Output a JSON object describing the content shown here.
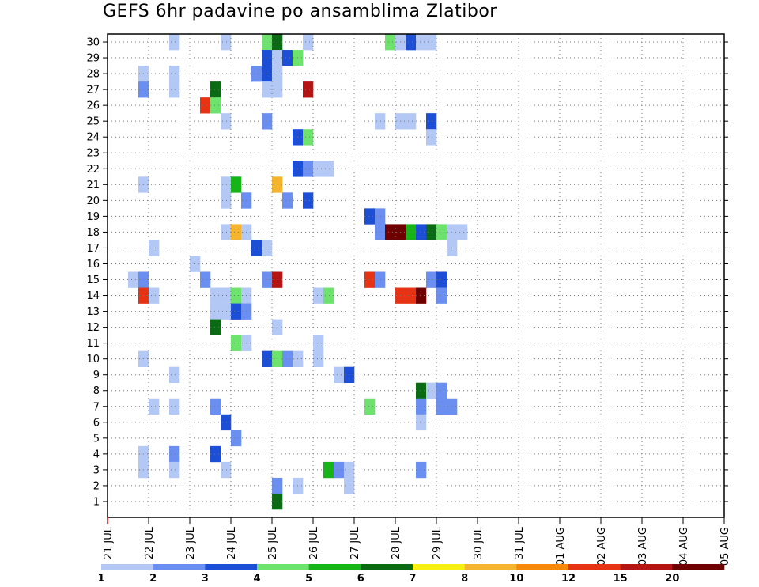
{
  "title": "GEFS 6hr padavine po ansamblima Zlatibor",
  "chart_data": {
    "type": "heatmap",
    "title": "GEFS 6hr padavine po ansamblima Zlatibor",
    "x_labels": [
      "21 JUL",
      "22 JUL",
      "23 JUL",
      "24 JUL",
      "25 JUL",
      "26 JUL",
      "27 JUL",
      "28 JUL",
      "29 JUL",
      "30 JUL",
      "31 JUL",
      "01 AUG",
      "02 AUG",
      "03 AUG",
      "04 AUG",
      "05 AUG"
    ],
    "y_labels": [
      "1",
      "2",
      "3",
      "4",
      "5",
      "6",
      "7",
      "8",
      "9",
      "10",
      "11",
      "12",
      "13",
      "14",
      "15",
      "16",
      "17",
      "18",
      "19",
      "20",
      "21",
      "22",
      "23",
      "24",
      "25",
      "26",
      "27",
      "28",
      "29",
      "30"
    ],
    "y_range": [
      0,
      30
    ],
    "x_step_hours": 6,
    "grid": true,
    "legend_position": "bottom",
    "legend": {
      "labels": [
        "1",
        "2",
        "3",
        "4",
        "5",
        "6",
        "7",
        "8",
        "10",
        "12",
        "15",
        "20"
      ],
      "colors": [
        "#b4c8f5",
        "#6b8ff0",
        "#1c4fd6",
        "#6de36d",
        "#17b417",
        "#0a6b14",
        "#f5f010",
        "#f5b42d",
        "#f58a0a",
        "#e63314",
        "#b41414",
        "#6e0000"
      ]
    },
    "cells": [
      [
        6,
        30,
        1
      ],
      [
        11,
        30,
        1
      ],
      [
        15,
        30,
        4
      ],
      [
        16,
        30,
        6
      ],
      [
        19,
        30,
        1
      ],
      [
        27,
        30,
        4
      ],
      [
        28,
        30,
        1
      ],
      [
        29,
        30,
        3
      ],
      [
        30,
        30,
        1
      ],
      [
        31,
        30,
        1
      ],
      [
        15,
        29,
        3
      ],
      [
        16,
        29,
        1
      ],
      [
        17,
        29,
        3
      ],
      [
        18,
        29,
        4
      ],
      [
        3,
        28,
        1
      ],
      [
        6,
        28,
        1
      ],
      [
        14,
        28,
        2
      ],
      [
        15,
        28,
        3
      ],
      [
        16,
        28,
        1
      ],
      [
        3,
        27,
        2
      ],
      [
        6,
        27,
        1
      ],
      [
        10,
        27,
        6
      ],
      [
        15,
        27,
        1
      ],
      [
        16,
        27,
        1
      ],
      [
        19,
        27,
        11
      ],
      [
        9,
        26,
        10
      ],
      [
        10,
        26,
        4
      ],
      [
        11,
        25,
        1
      ],
      [
        15,
        25,
        2
      ],
      [
        26,
        25,
        1
      ],
      [
        28,
        25,
        1
      ],
      [
        29,
        25,
        1
      ],
      [
        31,
        25,
        3
      ],
      [
        18,
        24,
        3
      ],
      [
        19,
        24,
        4
      ],
      [
        31,
        24,
        1
      ],
      [
        18,
        22,
        3
      ],
      [
        19,
        22,
        2
      ],
      [
        20,
        22,
        1
      ],
      [
        21,
        22,
        1
      ],
      [
        3,
        21,
        1
      ],
      [
        11,
        21,
        1
      ],
      [
        12,
        21,
        5
      ],
      [
        16,
        21,
        8
      ],
      [
        11,
        20,
        1
      ],
      [
        13,
        20,
        2
      ],
      [
        17,
        20,
        2
      ],
      [
        19,
        20,
        3
      ],
      [
        25,
        19,
        3
      ],
      [
        26,
        19,
        2
      ],
      [
        11,
        18,
        1
      ],
      [
        12,
        18,
        8
      ],
      [
        13,
        18,
        1
      ],
      [
        26,
        18,
        2
      ],
      [
        27,
        18,
        12
      ],
      [
        28,
        18,
        12
      ],
      [
        29,
        18,
        5
      ],
      [
        30,
        18,
        3
      ],
      [
        31,
        18,
        6
      ],
      [
        32,
        18,
        4
      ],
      [
        33,
        18,
        1
      ],
      [
        34,
        18,
        1
      ],
      [
        4,
        17,
        1
      ],
      [
        14,
        17,
        3
      ],
      [
        15,
        17,
        1
      ],
      [
        33,
        17,
        1
      ],
      [
        8,
        16,
        1
      ],
      [
        2,
        15,
        1
      ],
      [
        3,
        15,
        2
      ],
      [
        9,
        15,
        2
      ],
      [
        15,
        15,
        2
      ],
      [
        16,
        15,
        11
      ],
      [
        25,
        15,
        10
      ],
      [
        26,
        15,
        2
      ],
      [
        31,
        15,
        2
      ],
      [
        32,
        15,
        3
      ],
      [
        3,
        14,
        10
      ],
      [
        4,
        14,
        1
      ],
      [
        10,
        14,
        1
      ],
      [
        11,
        14,
        1
      ],
      [
        12,
        14,
        4
      ],
      [
        13,
        14,
        1
      ],
      [
        20,
        14,
        1
      ],
      [
        21,
        14,
        4
      ],
      [
        28,
        14,
        10
      ],
      [
        29,
        14,
        10
      ],
      [
        30,
        14,
        12
      ],
      [
        32,
        14,
        2
      ],
      [
        10,
        13,
        1
      ],
      [
        11,
        13,
        1
      ],
      [
        12,
        13,
        3
      ],
      [
        13,
        13,
        2
      ],
      [
        10,
        12,
        6
      ],
      [
        16,
        12,
        1
      ],
      [
        12,
        11,
        4
      ],
      [
        13,
        11,
        1
      ],
      [
        20,
        11,
        1
      ],
      [
        3,
        10,
        1
      ],
      [
        15,
        10,
        3
      ],
      [
        16,
        10,
        4
      ],
      [
        17,
        10,
        2
      ],
      [
        18,
        10,
        1
      ],
      [
        20,
        10,
        1
      ],
      [
        6,
        9,
        1
      ],
      [
        22,
        9,
        1
      ],
      [
        23,
        9,
        3
      ],
      [
        30,
        8,
        6
      ],
      [
        31,
        8,
        1
      ],
      [
        32,
        8,
        2
      ],
      [
        4,
        7,
        1
      ],
      [
        6,
        7,
        1
      ],
      [
        10,
        7,
        2
      ],
      [
        25,
        7,
        4
      ],
      [
        30,
        7,
        2
      ],
      [
        32,
        7,
        2
      ],
      [
        33,
        7,
        2
      ],
      [
        11,
        6,
        3
      ],
      [
        30,
        6,
        1
      ],
      [
        12,
        5,
        2
      ],
      [
        3,
        4,
        1
      ],
      [
        6,
        4,
        2
      ],
      [
        10,
        4,
        3
      ],
      [
        3,
        3,
        1
      ],
      [
        6,
        3,
        1
      ],
      [
        11,
        3,
        1
      ],
      [
        21,
        3,
        5
      ],
      [
        22,
        3,
        2
      ],
      [
        23,
        3,
        1
      ],
      [
        30,
        3,
        2
      ],
      [
        16,
        2,
        2
      ],
      [
        18,
        2,
        1
      ],
      [
        23,
        2,
        1
      ],
      [
        16,
        1,
        6
      ]
    ]
  }
}
